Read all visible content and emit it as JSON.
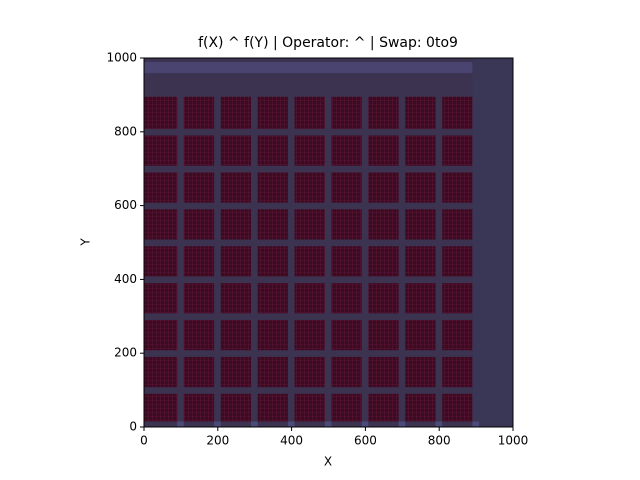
{
  "chart_data": {
    "type": "image",
    "title": "f(X) ^ f(Y) | Operator: ^ | Swap: 0to9",
    "x_label": "X",
    "y_label": "Y",
    "xlim": [
      0,
      1000
    ],
    "ylim": [
      0,
      1000
    ],
    "xticks": [
      0,
      200,
      400,
      600,
      800,
      1000
    ],
    "yticks": [
      0,
      200,
      400,
      600,
      800,
      1000
    ]
  }
}
